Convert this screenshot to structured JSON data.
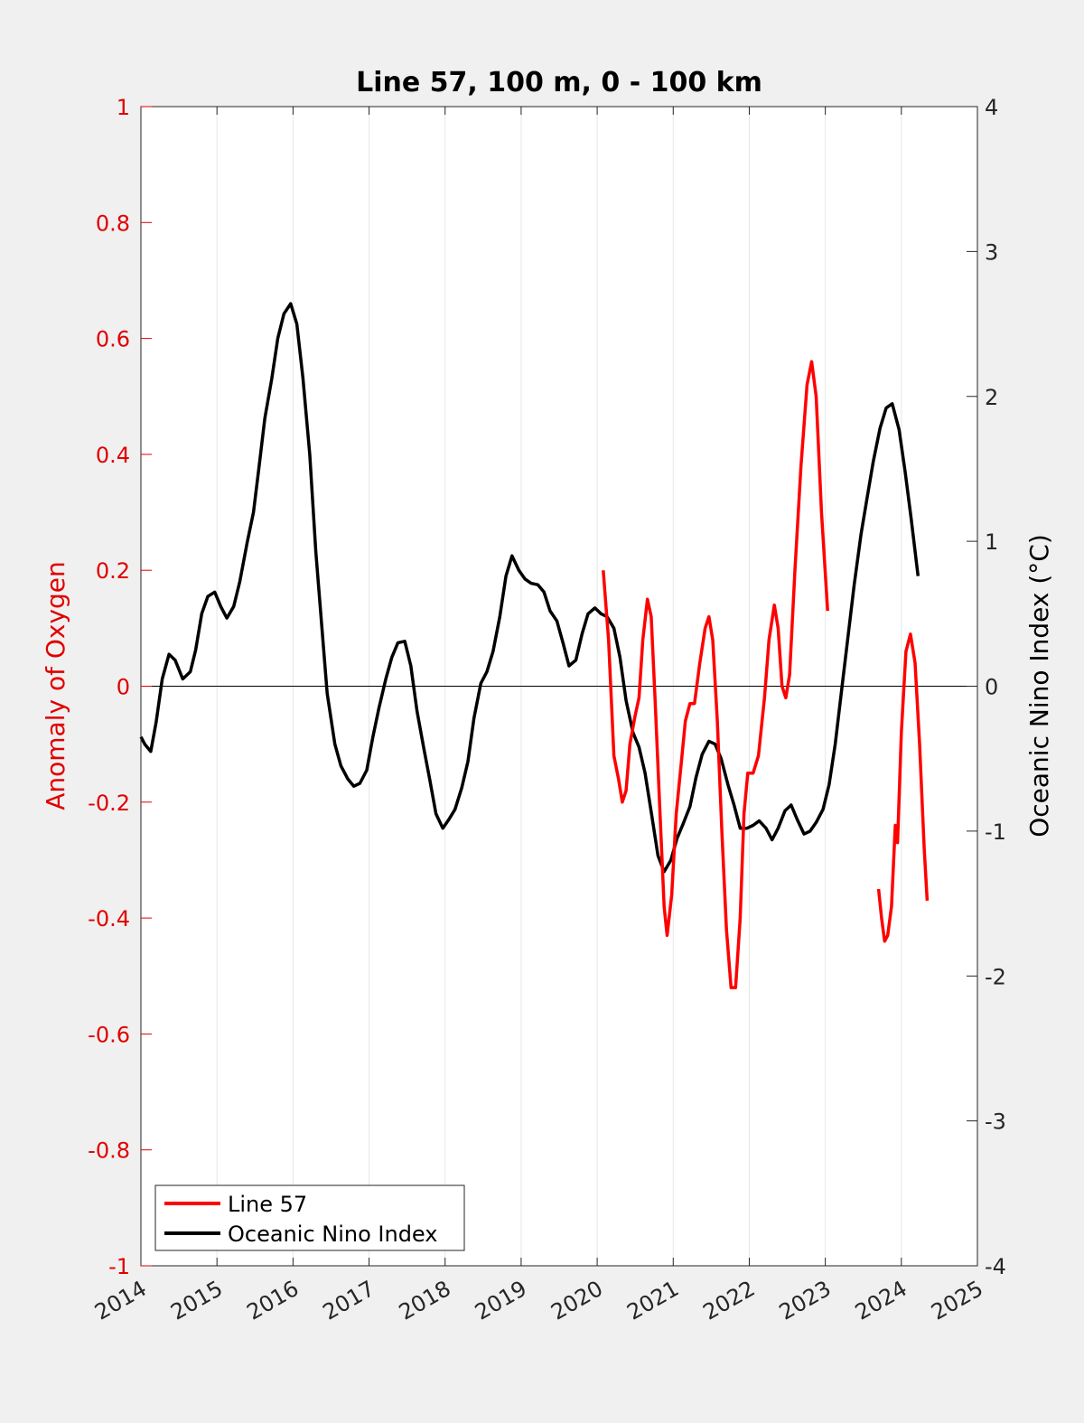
{
  "chart_data": {
    "type": "line",
    "title": "Line 57, 100 m, 0 - 100 km",
    "xlabel": "",
    "ylabel": "Anomaly of Oxygen",
    "ylabel_right": "Oceanic Nino Index (°C)",
    "xlim": [
      2014,
      2025
    ],
    "ylim": [
      -1,
      1
    ],
    "ylim_right": [
      -4,
      4
    ],
    "x_ticks": [
      "2014",
      "2015",
      "2016",
      "2017",
      "2018",
      "2019",
      "2020",
      "2021",
      "2022",
      "2023",
      "2024",
      "2025"
    ],
    "y_ticks": [
      "1",
      "0.8",
      "0.6",
      "0.4",
      "0.2",
      "0",
      "-0.2",
      "-0.4",
      "-0.6",
      "-0.8",
      "-1"
    ],
    "y_ticks_right": [
      "4",
      "3",
      "2",
      "1",
      "0",
      "-1",
      "-2",
      "-3",
      "-4"
    ],
    "grid": "vertical",
    "zero_line": 0,
    "legend_position": "bottom-left",
    "colors": {
      "line57": "#ff0000",
      "oni": "#000000",
      "left_axis": "#e00000"
    },
    "series": [
      {
        "name": "Line 57",
        "axis": "left",
        "segments": [
          [
            [
              2020.08,
              0.2
            ],
            [
              2020.15,
              0.08
            ],
            [
              2020.22,
              -0.12
            ],
            [
              2020.28,
              -0.16
            ],
            [
              2020.33,
              -0.2
            ],
            [
              2020.38,
              -0.18
            ],
            [
              2020.43,
              -0.1
            ],
            [
              2020.5,
              -0.05
            ],
            [
              2020.55,
              -0.02
            ],
            [
              2020.6,
              0.08
            ],
            [
              2020.66,
              0.15
            ],
            [
              2020.71,
              0.12
            ],
            [
              2020.76,
              -0.02
            ],
            [
              2020.82,
              -0.2
            ],
            [
              2020.88,
              -0.38
            ],
            [
              2020.92,
              -0.43
            ],
            [
              2020.98,
              -0.36
            ],
            [
              2021.04,
              -0.22
            ],
            [
              2021.1,
              -0.14
            ],
            [
              2021.16,
              -0.06
            ],
            [
              2021.22,
              -0.03
            ],
            [
              2021.28,
              -0.03
            ],
            [
              2021.35,
              0.04
            ],
            [
              2021.42,
              0.1
            ],
            [
              2021.47,
              0.12
            ],
            [
              2021.52,
              0.08
            ],
            [
              2021.58,
              -0.06
            ],
            [
              2021.64,
              -0.25
            ],
            [
              2021.7,
              -0.42
            ],
            [
              2021.76,
              -0.52
            ],
            [
              2021.82,
              -0.52
            ],
            [
              2021.88,
              -0.4
            ],
            [
              2021.93,
              -0.22
            ],
            [
              2021.98,
              -0.15
            ],
            [
              2022.05,
              -0.15
            ],
            [
              2022.12,
              -0.12
            ],
            [
              2022.2,
              -0.02
            ],
            [
              2022.26,
              0.08
            ],
            [
              2022.33,
              0.14
            ],
            [
              2022.38,
              0.1
            ],
            [
              2022.43,
              0.0
            ],
            [
              2022.48,
              -0.02
            ],
            [
              2022.53,
              0.02
            ],
            [
              2022.6,
              0.2
            ],
            [
              2022.68,
              0.38
            ],
            [
              2022.76,
              0.52
            ],
            [
              2022.82,
              0.56
            ],
            [
              2022.88,
              0.5
            ],
            [
              2022.95,
              0.3
            ],
            [
              2023.03,
              0.13
            ]
          ],
          [
            [
              2023.7,
              -0.35
            ],
            [
              2023.74,
              -0.4
            ],
            [
              2023.78,
              -0.44
            ],
            [
              2023.82,
              -0.43
            ],
            [
              2023.87,
              -0.38
            ],
            [
              2023.92,
              -0.24
            ],
            [
              2023.95,
              -0.27
            ],
            [
              2024.0,
              -0.08
            ],
            [
              2024.06,
              0.06
            ],
            [
              2024.12,
              0.09
            ],
            [
              2024.18,
              0.04
            ],
            [
              2024.24,
              -0.1
            ],
            [
              2024.3,
              -0.28
            ],
            [
              2024.34,
              -0.37
            ]
          ]
        ]
      },
      {
        "name": "Oceanic Nino Index",
        "axis": "right",
        "points": [
          [
            2014.0,
            -0.35
          ],
          [
            2014.05,
            -0.4
          ],
          [
            2014.13,
            -0.45
          ],
          [
            2014.2,
            -0.25
          ],
          [
            2014.28,
            0.05
          ],
          [
            2014.37,
            0.22
          ],
          [
            2014.45,
            0.18
          ],
          [
            2014.55,
            0.05
          ],
          [
            2014.65,
            0.1
          ],
          [
            2014.72,
            0.25
          ],
          [
            2014.8,
            0.5
          ],
          [
            2014.88,
            0.62
          ],
          [
            2014.97,
            0.65
          ],
          [
            2015.05,
            0.55
          ],
          [
            2015.13,
            0.47
          ],
          [
            2015.22,
            0.55
          ],
          [
            2015.3,
            0.72
          ],
          [
            2015.4,
            1.0
          ],
          [
            2015.48,
            1.2
          ],
          [
            2015.55,
            1.5
          ],
          [
            2015.63,
            1.85
          ],
          [
            2015.72,
            2.12
          ],
          [
            2015.8,
            2.4
          ],
          [
            2015.88,
            2.57
          ],
          [
            2015.97,
            2.64
          ],
          [
            2016.05,
            2.5
          ],
          [
            2016.13,
            2.13
          ],
          [
            2016.22,
            1.6
          ],
          [
            2016.3,
            0.93
          ],
          [
            2016.38,
            0.4
          ],
          [
            2016.45,
            -0.05
          ],
          [
            2016.55,
            -0.4
          ],
          [
            2016.63,
            -0.55
          ],
          [
            2016.72,
            -0.64
          ],
          [
            2016.8,
            -0.69
          ],
          [
            2016.88,
            -0.67
          ],
          [
            2016.97,
            -0.58
          ],
          [
            2017.05,
            -0.35
          ],
          [
            2017.13,
            -0.15
          ],
          [
            2017.22,
            0.05
          ],
          [
            2017.3,
            0.2
          ],
          [
            2017.38,
            0.3
          ],
          [
            2017.47,
            0.31
          ],
          [
            2017.55,
            0.14
          ],
          [
            2017.63,
            -0.17
          ],
          [
            2017.72,
            -0.43
          ],
          [
            2017.8,
            -0.65
          ],
          [
            2017.88,
            -0.88
          ],
          [
            2017.97,
            -0.98
          ],
          [
            2018.05,
            -0.92
          ],
          [
            2018.13,
            -0.85
          ],
          [
            2018.22,
            -0.7
          ],
          [
            2018.3,
            -0.52
          ],
          [
            2018.38,
            -0.22
          ],
          [
            2018.47,
            0.02
          ],
          [
            2018.55,
            0.1
          ],
          [
            2018.63,
            0.24
          ],
          [
            2018.72,
            0.48
          ],
          [
            2018.8,
            0.76
          ],
          [
            2018.88,
            0.9
          ],
          [
            2018.97,
            0.8
          ],
          [
            2019.05,
            0.74
          ],
          [
            2019.13,
            0.71
          ],
          [
            2019.22,
            0.7
          ],
          [
            2019.3,
            0.65
          ],
          [
            2019.38,
            0.52
          ],
          [
            2019.47,
            0.45
          ],
          [
            2019.55,
            0.3
          ],
          [
            2019.63,
            0.14
          ],
          [
            2019.72,
            0.18
          ],
          [
            2019.8,
            0.36
          ],
          [
            2019.88,
            0.5
          ],
          [
            2019.97,
            0.54
          ],
          [
            2020.05,
            0.5
          ],
          [
            2020.13,
            0.48
          ],
          [
            2020.22,
            0.4
          ],
          [
            2020.3,
            0.2
          ],
          [
            2020.38,
            -0.1
          ],
          [
            2020.47,
            -0.32
          ],
          [
            2020.55,
            -0.42
          ],
          [
            2020.63,
            -0.6
          ],
          [
            2020.72,
            -0.9
          ],
          [
            2020.8,
            -1.17
          ],
          [
            2020.88,
            -1.28
          ],
          [
            2020.97,
            -1.2
          ],
          [
            2021.05,
            -1.05
          ],
          [
            2021.13,
            -0.95
          ],
          [
            2021.22,
            -0.83
          ],
          [
            2021.3,
            -0.63
          ],
          [
            2021.38,
            -0.47
          ],
          [
            2021.47,
            -0.38
          ],
          [
            2021.55,
            -0.4
          ],
          [
            2021.63,
            -0.5
          ],
          [
            2021.72,
            -0.68
          ],
          [
            2021.8,
            -0.82
          ],
          [
            2021.88,
            -0.98
          ],
          [
            2021.97,
            -0.98
          ],
          [
            2022.05,
            -0.96
          ],
          [
            2022.13,
            -0.93
          ],
          [
            2022.22,
            -0.98
          ],
          [
            2022.3,
            -1.06
          ],
          [
            2022.38,
            -0.98
          ],
          [
            2022.47,
            -0.86
          ],
          [
            2022.55,
            -0.82
          ],
          [
            2022.63,
            -0.92
          ],
          [
            2022.72,
            -1.02
          ],
          [
            2022.8,
            -1.0
          ],
          [
            2022.88,
            -0.94
          ],
          [
            2022.97,
            -0.85
          ],
          [
            2023.05,
            -0.68
          ],
          [
            2023.13,
            -0.4
          ],
          [
            2023.22,
            0.0
          ],
          [
            2023.3,
            0.35
          ],
          [
            2023.38,
            0.7
          ],
          [
            2023.47,
            1.05
          ],
          [
            2023.55,
            1.3
          ],
          [
            2023.63,
            1.55
          ],
          [
            2023.72,
            1.78
          ],
          [
            2023.8,
            1.92
          ],
          [
            2023.88,
            1.95
          ],
          [
            2023.97,
            1.77
          ],
          [
            2024.05,
            1.48
          ],
          [
            2024.13,
            1.15
          ],
          [
            2024.22,
            0.76
          ]
        ]
      }
    ]
  }
}
